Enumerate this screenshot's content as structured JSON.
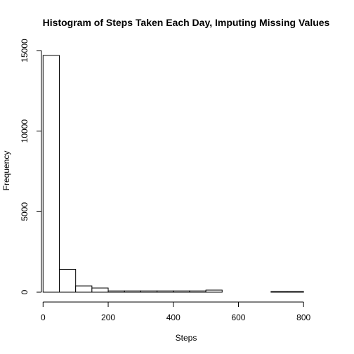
{
  "chart_data": {
    "type": "bar",
    "title": "Histogram of Steps Taken Each Day, Imputing Missing Values",
    "xlabel": "Steps",
    "ylabel": "Frequency",
    "bin_width": 50,
    "bins": [
      {
        "start": 0,
        "end": 50,
        "count": 14700
      },
      {
        "start": 50,
        "end": 100,
        "count": 1420
      },
      {
        "start": 100,
        "end": 150,
        "count": 390
      },
      {
        "start": 150,
        "end": 200,
        "count": 260
      },
      {
        "start": 200,
        "end": 250,
        "count": 80
      },
      {
        "start": 250,
        "end": 300,
        "count": 80
      },
      {
        "start": 300,
        "end": 350,
        "count": 80
      },
      {
        "start": 350,
        "end": 400,
        "count": 80
      },
      {
        "start": 400,
        "end": 450,
        "count": 80
      },
      {
        "start": 450,
        "end": 500,
        "count": 80
      },
      {
        "start": 500,
        "end": 550,
        "count": 130
      },
      {
        "start": 550,
        "end": 600,
        "count": 0
      },
      {
        "start": 600,
        "end": 650,
        "count": 0
      },
      {
        "start": 650,
        "end": 700,
        "count": 0
      },
      {
        "start": 700,
        "end": 750,
        "count": 40
      },
      {
        "start": 750,
        "end": 800,
        "count": 40
      }
    ],
    "xlim": [
      -5,
      860
    ],
    "ylim": [
      0,
      15000
    ],
    "x_ticks": [
      0,
      200,
      400,
      600,
      800
    ],
    "x_tick_labels": [
      "0",
      "200",
      "400",
      "600",
      "800"
    ],
    "y_ticks": [
      0,
      5000,
      10000,
      15000
    ],
    "y_tick_labels": [
      "0",
      "5000",
      "10000",
      "15000"
    ],
    "grid": false,
    "colors": {
      "bar_fill": "#ffffff",
      "bar_stroke": "#000000"
    }
  }
}
